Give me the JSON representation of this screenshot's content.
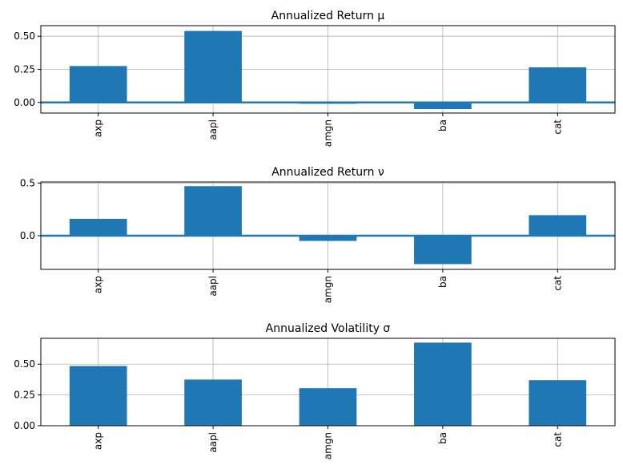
{
  "chart_data": [
    {
      "type": "bar",
      "title": "Annualized Return μ",
      "categories": [
        "axp",
        "aapl",
        "amgn",
        "ba",
        "cat"
      ],
      "values": [
        0.275,
        0.54,
        -0.01,
        -0.05,
        0.265
      ],
      "ylim": [
        -0.08,
        0.58
      ],
      "yticks": [
        0.0,
        0.25,
        0.5
      ],
      "ytick_labels": [
        "0.00",
        "0.25",
        "0.50"
      ],
      "grid": true,
      "zero_line": true,
      "bar_color": "#1f77b4"
    },
    {
      "type": "bar",
      "title": "Annualized Return ν",
      "categories": [
        "axp",
        "aapl",
        "amgn",
        "ba",
        "cat"
      ],
      "values": [
        0.16,
        0.47,
        -0.05,
        -0.27,
        0.195
      ],
      "ylim": [
        -0.32,
        0.51
      ],
      "yticks": [
        0.0,
        0.5
      ],
      "ytick_labels": [
        "0.0",
        "0.5"
      ],
      "grid": true,
      "zero_line": true,
      "bar_color": "#1f77b4"
    },
    {
      "type": "bar",
      "title": "Annualized Volatility σ",
      "categories": [
        "axp",
        "aapl",
        "amgn",
        "ba",
        "cat"
      ],
      "values": [
        0.485,
        0.375,
        0.305,
        0.675,
        0.37
      ],
      "ylim": [
        0.0,
        0.71
      ],
      "yticks": [
        0.0,
        0.25,
        0.5
      ],
      "ytick_labels": [
        "0.00",
        "0.25",
        "0.50"
      ],
      "grid": true,
      "zero_line": false,
      "bar_color": "#1f77b4"
    }
  ]
}
